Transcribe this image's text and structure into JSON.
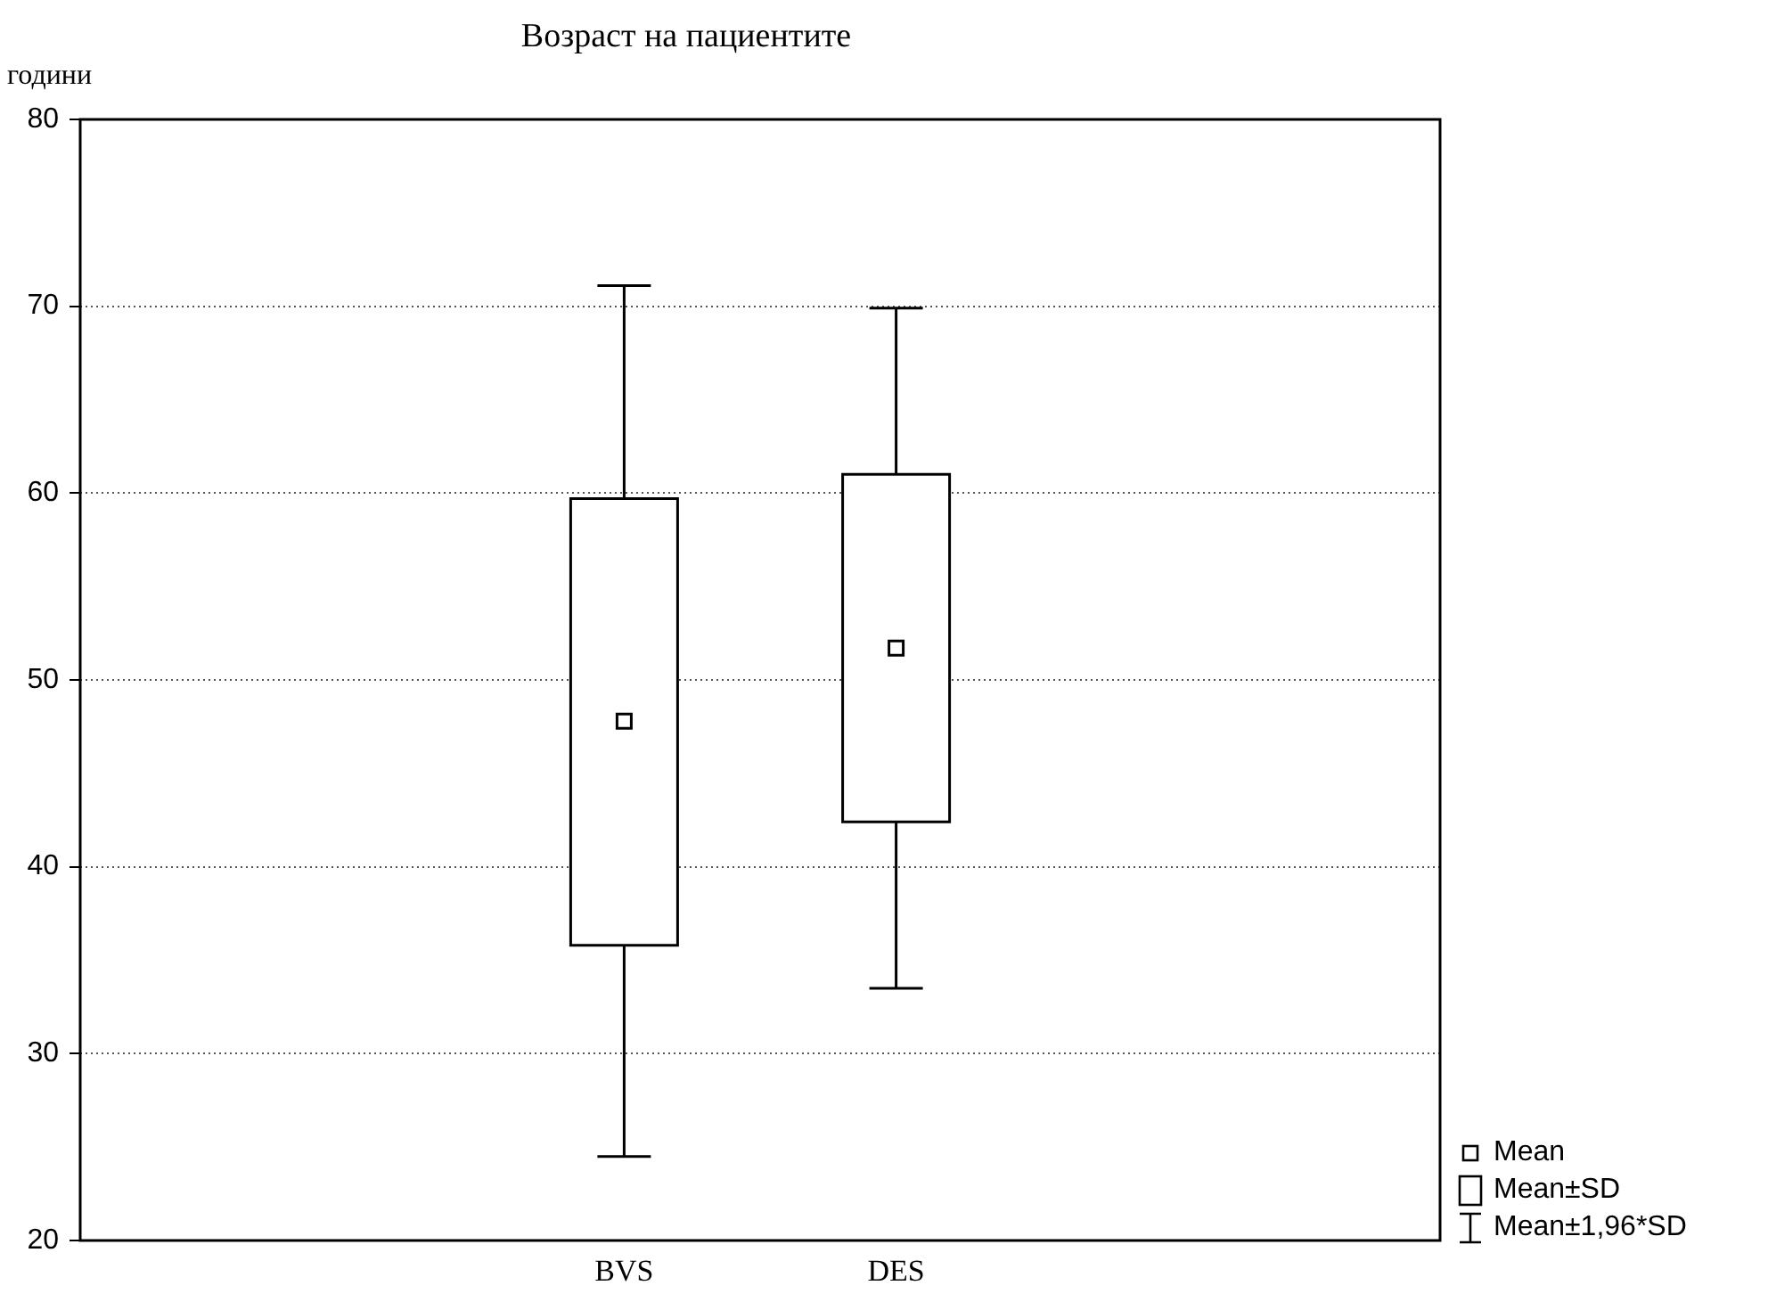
{
  "chart_data": {
    "type": "box",
    "title": "Возраст на пациентите",
    "ylabel": "години",
    "categories": [
      null,
      null,
      "BVS",
      "DES",
      null,
      null
    ],
    "ylim": [
      20,
      80
    ],
    "yticks": [
      20,
      30,
      40,
      50,
      60,
      70,
      80
    ],
    "grid": "y",
    "boxes": [
      null,
      null,
      {
        "low": 24.5,
        "q1": 35.8,
        "q3": 59.7,
        "high": 71.1,
        "mean": 47.8
      },
      {
        "low": 33.5,
        "q1": 42.4,
        "q3": 61.0,
        "high": 69.9,
        "mean": 51.7
      },
      null,
      null
    ],
    "annotations": [
      "Mean",
      "Mean±SD",
      "Mean±1,96*SD"
    ]
  }
}
